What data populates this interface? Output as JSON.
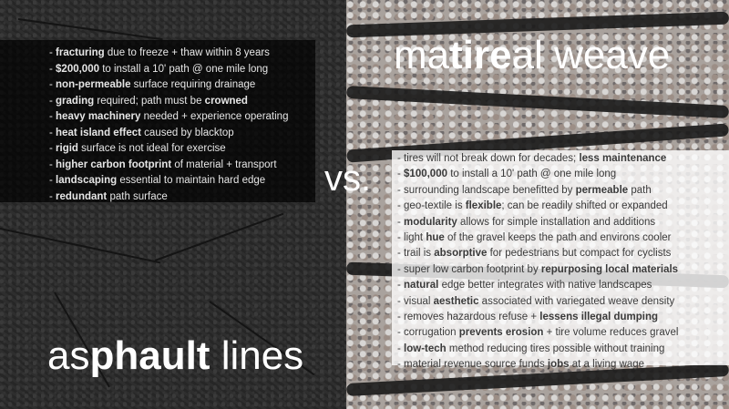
{
  "left": {
    "title": {
      "part1": "as",
      "part2": "phault",
      "part3": " lines"
    },
    "items": [
      {
        "pre": "- ",
        "bold": "fracturing",
        "post": " due to freeze + thaw within 8 years"
      },
      {
        "pre": "- ",
        "bold": "$200,000",
        "post": " to install a 10' path @ one mile long"
      },
      {
        "pre": "- ",
        "bold": "non-permeable",
        "post": " surface requiring drainage"
      },
      {
        "pre": "- ",
        "bold": "grading",
        "post": " required; path must be ",
        "bold2": "crowned"
      },
      {
        "pre": "- ",
        "bold": "heavy machinery",
        "post": " needed + experience operating"
      },
      {
        "pre": "- ",
        "bold": "heat island effect",
        "post": " caused by blacktop"
      },
      {
        "pre": "- ",
        "bold": "rigid",
        "post": " surface is not ideal for exercise"
      },
      {
        "pre": "- ",
        "bold": "higher carbon footprint",
        "post": " of material + transport"
      },
      {
        "pre": "- ",
        "bold": "landscaping",
        "post": " essential to maintain hard edge"
      },
      {
        "pre": "- ",
        "bold": "redundant",
        "post": " path surface"
      }
    ]
  },
  "vs": "vs.",
  "right": {
    "title": {
      "part1": "ma",
      "part2": "tire",
      "part3": "al weave"
    },
    "items": [
      {
        "pre": "- tires will not break down for decades; ",
        "bold": "less maintenance",
        "post": ""
      },
      {
        "pre": "- ",
        "bold": "$100,000",
        "post": " to install a 10' path @ one mile long"
      },
      {
        "pre": "- surrounding landscape benefitted by ",
        "bold": "permeable",
        "post": " path"
      },
      {
        "pre": "- geo-textile is ",
        "bold": "flexible",
        "post": "; can be readily shifted or expanded"
      },
      {
        "pre": "- ",
        "bold": "modularity",
        "post": " allows for simple installation and additions"
      },
      {
        "pre": "- light ",
        "bold": "hue",
        "post": " of the gravel keeps the path and environs cooler"
      },
      {
        "pre": "- trail is ",
        "bold": "absorptive",
        "post": " for pedestrians but compact for cyclists"
      },
      {
        "pre": "- super low carbon footprint by ",
        "bold": "repurposing local materials",
        "post": ""
      },
      {
        "pre": "- ",
        "bold": "natural",
        "post": " edge better integrates with native landscapes"
      },
      {
        "pre": "- visual ",
        "bold": "aesthetic",
        "post": " associated with variegated weave density"
      },
      {
        "pre": "- removes hazardous refuse + ",
        "bold": "lessens illegal dumping",
        "post": ""
      },
      {
        "pre": "- corrugation ",
        "bold": "prevents erosion",
        "post": " + tire volume reduces gravel"
      },
      {
        "pre": "- ",
        "bold": "low-tech",
        "post": " method reducing tires possible without training"
      },
      {
        "pre": "- material revenue source funds ",
        "bold": "jobs",
        "post": " at a living wage"
      }
    ]
  }
}
